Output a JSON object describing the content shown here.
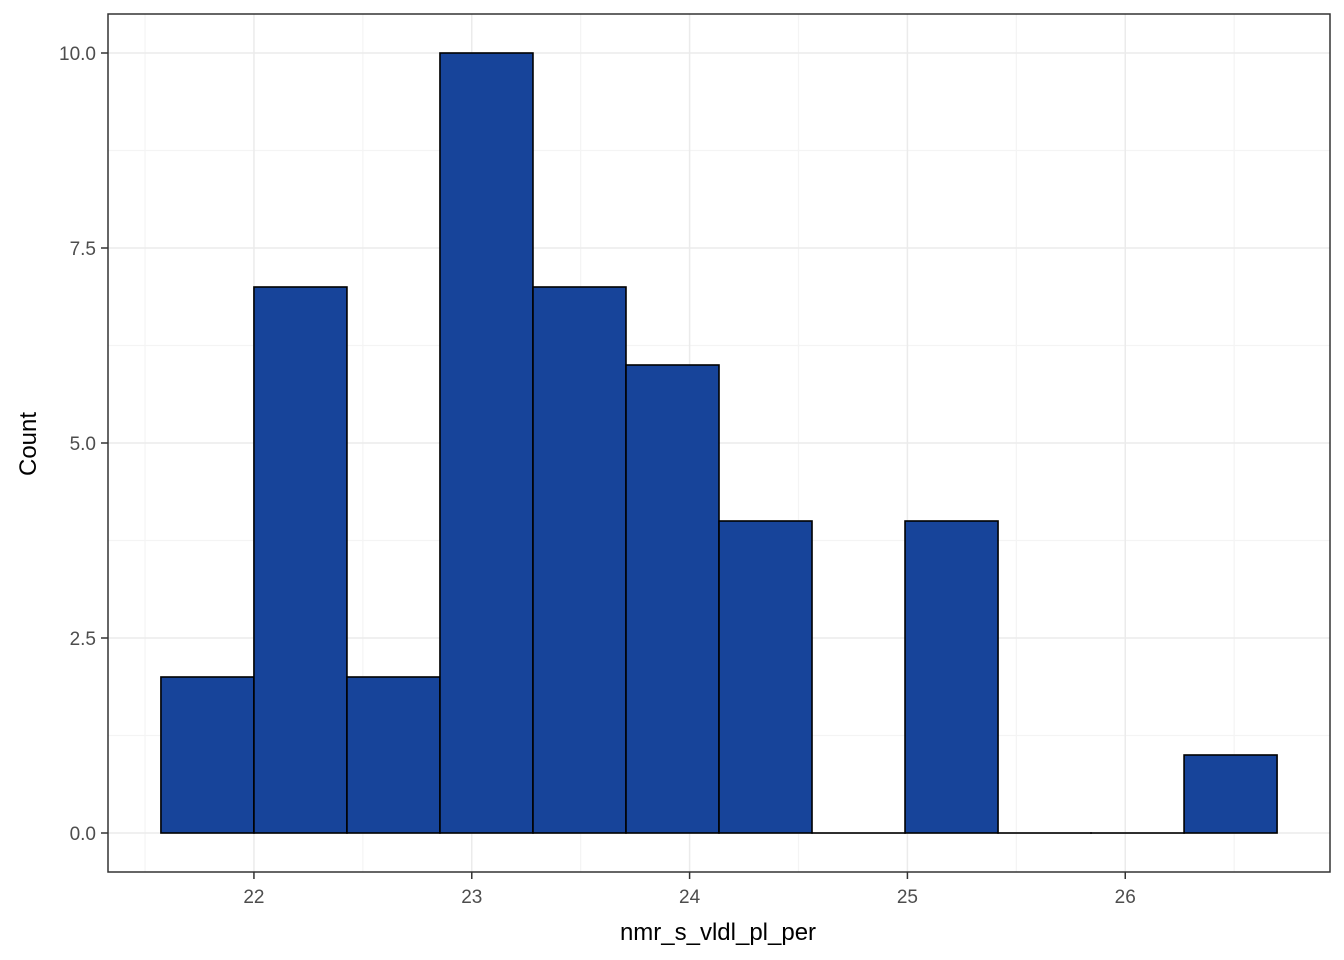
{
  "chart_data": {
    "type": "bar",
    "title": "",
    "xlabel": "nmr_s_vldl_pl_per",
    "ylabel": "Count",
    "bin_width": 0.427,
    "bins": [
      {
        "start": 21.573,
        "end": 22.0,
        "count": 2
      },
      {
        "start": 22.0,
        "end": 22.427,
        "count": 7
      },
      {
        "start": 22.427,
        "end": 22.854,
        "count": 2
      },
      {
        "start": 22.854,
        "end": 23.281,
        "count": 10
      },
      {
        "start": 23.281,
        "end": 23.708,
        "count": 7
      },
      {
        "start": 23.708,
        "end": 24.135,
        "count": 6
      },
      {
        "start": 24.135,
        "end": 24.562,
        "count": 4
      },
      {
        "start": 24.562,
        "end": 24.989,
        "count": 0
      },
      {
        "start": 24.989,
        "end": 25.416,
        "count": 4
      },
      {
        "start": 25.416,
        "end": 25.843,
        "count": 0
      },
      {
        "start": 25.843,
        "end": 26.27,
        "count": 0
      },
      {
        "start": 26.27,
        "end": 26.697,
        "count": 1
      }
    ],
    "xlim": [
      21.33,
      26.94
    ],
    "ylim": [
      -0.5,
      10.5
    ],
    "xticks": [
      22,
      23,
      24,
      25,
      26
    ],
    "xtick_labels": [
      "22",
      "23",
      "24",
      "25",
      "26"
    ],
    "yticks": [
      0,
      2.5,
      5,
      7.5,
      10
    ],
    "ytick_labels": [
      "0.0",
      "2.5",
      "5.0",
      "7.5",
      "10.0"
    ],
    "grid": true,
    "legend": "none",
    "colors": {
      "bar_fill": "#17449a",
      "bar_stroke": "#000000",
      "grid_major": "#ebebeb",
      "grid_minor": "#f4f4f4",
      "panel_border": "#333333"
    }
  }
}
